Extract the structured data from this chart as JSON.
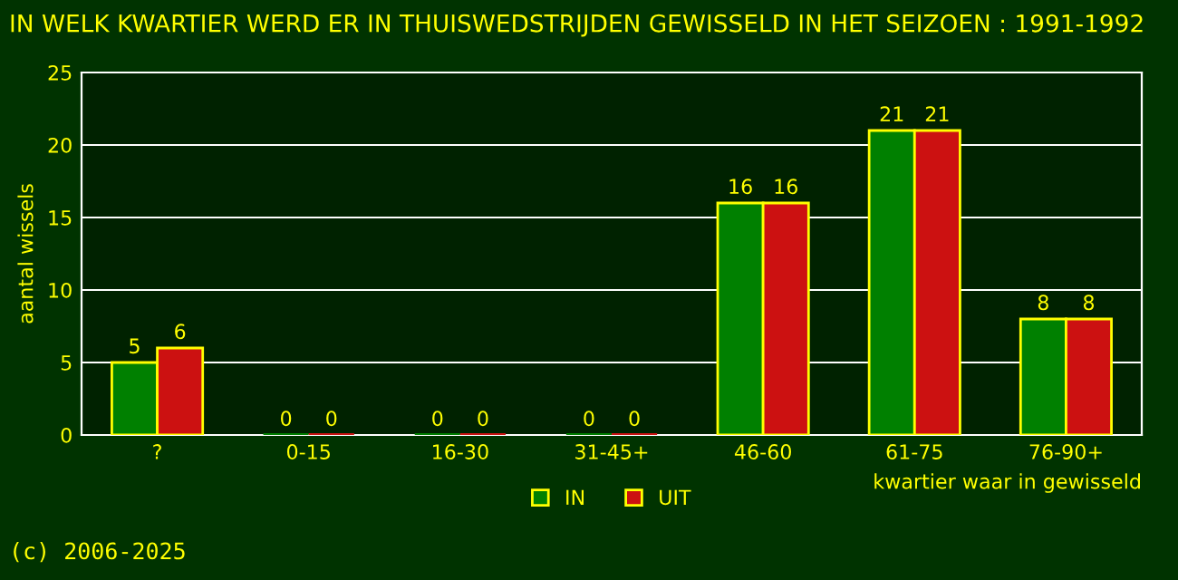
{
  "chart_data": {
    "type": "bar",
    "title": "IN WELK KWARTIER WERD ER IN THUISWEDSTRIJDEN GEWISSELD IN HET SEIZOEN : 1991-1992",
    "xlabel": "kwartier waar in gewisseld",
    "ylabel": "aantal wissels",
    "categories": [
      "?",
      "0-15",
      "16-30",
      "31-45+",
      "46-60",
      "61-75",
      "76-90+"
    ],
    "series": [
      {
        "name": "IN",
        "color": "#008000",
        "values": [
          5,
          0,
          0,
          0,
          16,
          21,
          8
        ]
      },
      {
        "name": "UIT",
        "color": "#cc1111",
        "values": [
          6,
          0,
          0,
          0,
          16,
          21,
          8
        ]
      }
    ],
    "ylim": [
      0,
      25
    ],
    "yticks": [
      0,
      5,
      10,
      15,
      20,
      25
    ],
    "grid": "y",
    "legend": "bottom",
    "data_labels": true,
    "annotations": [
      "(c) 2006-2025"
    ]
  }
}
